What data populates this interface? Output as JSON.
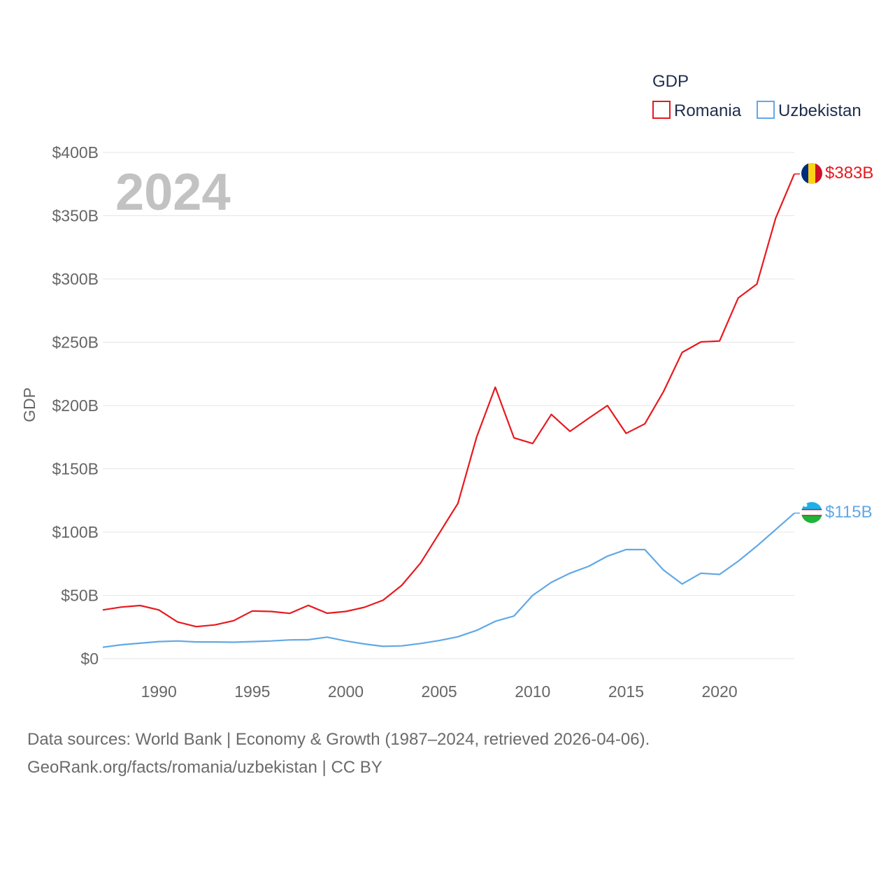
{
  "chart_data": {
    "type": "line",
    "title": "",
    "legend_title": "GDP",
    "ylabel": "GDP",
    "xlabel": "",
    "year_label": "2024",
    "xlim": [
      1987,
      2024
    ],
    "ylim": [
      0,
      400
    ],
    "y_ticks": [
      {
        "value": 0,
        "label": "$0"
      },
      {
        "value": 50,
        "label": "$50B"
      },
      {
        "value": 100,
        "label": "$100B"
      },
      {
        "value": 150,
        "label": "$150B"
      },
      {
        "value": 200,
        "label": "$200B"
      },
      {
        "value": 250,
        "label": "$250B"
      },
      {
        "value": 300,
        "label": "$300B"
      },
      {
        "value": 350,
        "label": "$350B"
      },
      {
        "value": 400,
        "label": "$400B"
      }
    ],
    "x_ticks": [
      {
        "value": 1990,
        "label": "1990"
      },
      {
        "value": 1995,
        "label": "1995"
      },
      {
        "value": 2000,
        "label": "2000"
      },
      {
        "value": 2005,
        "label": "2005"
      },
      {
        "value": 2010,
        "label": "2010"
      },
      {
        "value": 2015,
        "label": "2015"
      },
      {
        "value": 2020,
        "label": "2020"
      }
    ],
    "grid": true,
    "legend_position": "top-right",
    "x": [
      1987,
      1988,
      1989,
      1990,
      1991,
      1992,
      1993,
      1994,
      1995,
      1996,
      1997,
      1998,
      1999,
      2000,
      2001,
      2002,
      2003,
      2004,
      2005,
      2006,
      2007,
      2008,
      2009,
      2010,
      2011,
      2012,
      2013,
      2014,
      2015,
      2016,
      2017,
      2018,
      2019,
      2020,
      2021,
      2022,
      2023,
      2024
    ],
    "series": [
      {
        "name": "Romania",
        "color": "#e8191e",
        "end_label": "$383B",
        "flag": "romania-flag",
        "values": [
          38.5,
          40.8,
          42,
          38.5,
          29,
          25.3,
          26.7,
          30,
          37.7,
          37.3,
          35.8,
          42.1,
          35.9,
          37.3,
          40.6,
          46.2,
          58,
          75.5,
          99,
          122.7,
          175,
          214.5,
          174.5,
          170,
          193,
          179.6,
          190,
          200,
          178,
          185.5,
          211,
          242,
          250.3,
          251,
          285,
          296,
          348,
          383
        ]
      },
      {
        "name": "Uzbekistan",
        "color": "#62a8e5",
        "end_label": "$115B",
        "flag": "uzbekistan-flag",
        "values": [
          9,
          11,
          12.2,
          13.5,
          14,
          13.2,
          13.2,
          13,
          13.5,
          14,
          14.8,
          15,
          17,
          14,
          11.6,
          9.7,
          10.1,
          12,
          14.3,
          17.3,
          22.3,
          29.5,
          33.7,
          50,
          60.3,
          67.5,
          73,
          81,
          86.2,
          86.2,
          70,
          59,
          67.5,
          66.6,
          77,
          89,
          102,
          115
        ]
      }
    ]
  },
  "footer": {
    "line1": "Data sources: World Bank | Economy & Growth (1987–2024, retrieved 2026-04-06).",
    "line2": "GeoRank.org/facts/romania/uzbekistan | CC BY"
  }
}
